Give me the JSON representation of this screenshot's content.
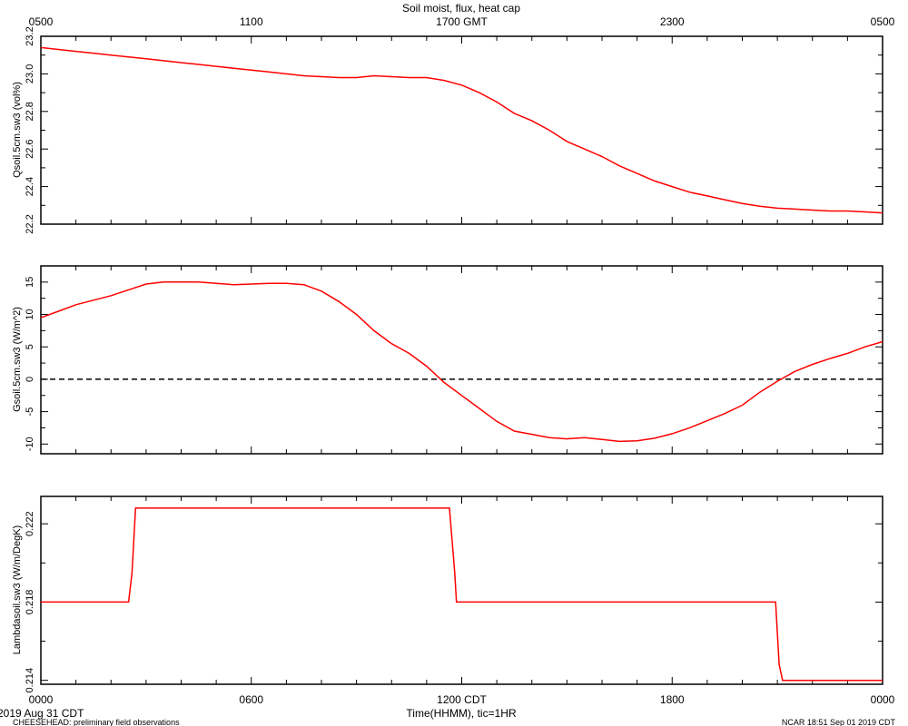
{
  "chart_data": [
    {
      "type": "line",
      "title": "Soil moist, flux, heat cap",
      "top_axis": {
        "ticks": [
          {
            "x": 0,
            "label": "0500"
          },
          {
            "x": 6,
            "label": "1100"
          },
          {
            "x": 12,
            "label": "1700 GMT"
          },
          {
            "x": 18,
            "label": "2300"
          },
          {
            "x": 24,
            "label": "0500"
          }
        ]
      },
      "xlim": [
        0,
        24
      ],
      "ylabel": "Qsoil.5cm.sw3 (vol%)",
      "ylim": [
        22.2,
        23.2
      ],
      "yticks": [
        22.2,
        22.4,
        22.6,
        22.8,
        23.0,
        23.2
      ],
      "ytick_labels": [
        "22.2",
        "22.4",
        "22.6",
        "22.8",
        "23.0",
        "23.2"
      ],
      "color": "#ff0000",
      "series": [
        {
          "x": [
            0,
            0.5,
            1,
            1.5,
            2,
            2.5,
            3,
            3.5,
            4,
            4.5,
            5,
            5.5,
            6,
            6.5,
            7,
            7.5,
            8,
            8.5,
            9,
            9.5,
            10,
            10.5,
            11,
            11.5,
            12,
            12.5,
            13,
            13.5,
            14,
            14.5,
            15,
            15.5,
            16,
            16.5,
            17,
            17.5,
            18,
            18.5,
            19,
            19.5,
            20,
            20.5,
            21,
            21.5,
            22,
            22.5,
            23,
            23.5,
            24
          ],
          "y": [
            23.14,
            23.13,
            23.12,
            23.11,
            23.1,
            23.09,
            23.08,
            23.07,
            23.06,
            23.05,
            23.04,
            23.03,
            23.02,
            23.01,
            23.0,
            22.99,
            22.985,
            22.98,
            22.98,
            22.99,
            22.985,
            22.98,
            22.98,
            22.965,
            22.94,
            22.9,
            22.85,
            22.79,
            22.75,
            22.7,
            22.64,
            22.6,
            22.56,
            22.51,
            22.47,
            22.43,
            22.4,
            22.37,
            22.35,
            22.33,
            22.31,
            22.295,
            22.285,
            22.28,
            22.275,
            22.27,
            22.27,
            22.265,
            22.26
          ]
        }
      ]
    },
    {
      "type": "line",
      "xlim": [
        0,
        24
      ],
      "ylabel": "Gsoil.5cm.sw3 (W/m^2)",
      "ylim": [
        -11.5,
        17.5
      ],
      "yticks": [
        -10,
        -5,
        0,
        5,
        10,
        15
      ],
      "ytick_labels": [
        "-10",
        "-5",
        "0",
        "5",
        "10",
        "15"
      ],
      "reference_line": 0,
      "color": "#ff0000",
      "series": [
        {
          "x": [
            0,
            0.5,
            1,
            1.5,
            2,
            2.5,
            3,
            3.5,
            4,
            4.5,
            5,
            5.5,
            6,
            6.5,
            7,
            7.5,
            8,
            8.5,
            9,
            9.5,
            10,
            10.5,
            11,
            11.5,
            12,
            12.5,
            13,
            13.5,
            14,
            14.5,
            15,
            15.5,
            16,
            16.5,
            17,
            17.5,
            18,
            18.5,
            19,
            19.5,
            20,
            20.5,
            21,
            21.5,
            22,
            22.5,
            23,
            23.5,
            24
          ],
          "y": [
            9.5,
            10.5,
            11.5,
            12.2,
            12.9,
            13.8,
            14.7,
            15.0,
            15.0,
            15.0,
            14.8,
            14.6,
            14.7,
            14.8,
            14.8,
            14.6,
            13.6,
            12.0,
            10.0,
            7.5,
            5.5,
            4.0,
            2.0,
            -0.5,
            -2.5,
            -4.5,
            -6.5,
            -8.0,
            -8.5,
            -9.0,
            -9.2,
            -9.0,
            -9.3,
            -9.6,
            -9.5,
            -9.1,
            -8.4,
            -7.5,
            -6.4,
            -5.3,
            -4.0,
            -2.0,
            -0.3,
            1.2,
            2.3,
            3.2,
            4.0,
            5.0,
            5.8
          ]
        }
      ]
    },
    {
      "type": "line",
      "xlim": [
        0,
        24
      ],
      "xlabel": "Time(HHMM), tic=1HR",
      "xticks": [
        {
          "x": 0,
          "label": "0000"
        },
        {
          "x": 6,
          "label": "0600"
        },
        {
          "x": 12,
          "label": "1200 CDT"
        },
        {
          "x": 18,
          "label": "1800"
        },
        {
          "x": 24,
          "label": "0000"
        }
      ],
      "ylabel": "Lambdasoil.sw3 (W/m/DegK)",
      "ylim": [
        0.2138,
        0.2234
      ],
      "yticks": [
        0.214,
        0.218,
        0.222
      ],
      "ytick_labels": [
        "0.214",
        "0.218",
        "0.222"
      ],
      "color": "#ff0000",
      "series": [
        {
          "x": [
            0,
            2.5,
            2.6,
            2.7,
            11.65,
            11.8,
            11.85,
            20.95,
            21.05,
            21.15,
            24
          ],
          "y": [
            0.218,
            0.218,
            0.2195,
            0.2228,
            0.2228,
            0.2195,
            0.218,
            0.218,
            0.2148,
            0.214,
            0.214
          ]
        }
      ]
    }
  ],
  "footer": {
    "date_left": "2019 Aug 31 CDT",
    "project": "CHEESEHEAD: preliminary field observations",
    "credit": "NCAR 18:51 Sep 01 2019 CDT"
  }
}
